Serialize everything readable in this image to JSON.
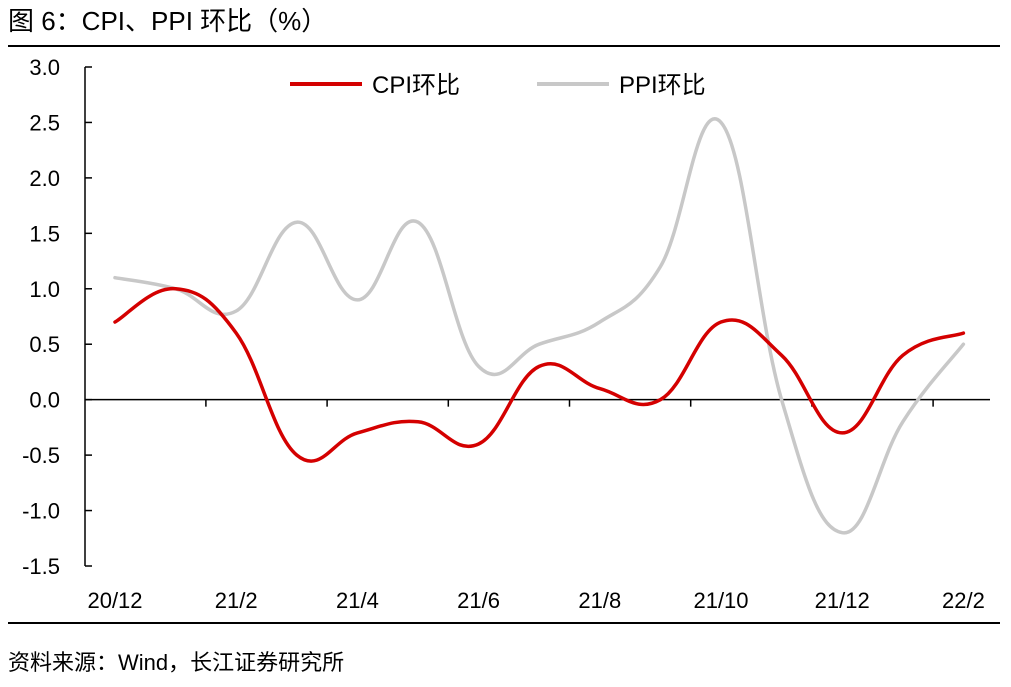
{
  "figure": {
    "title": "图 6：CPI、PPI 环比（%）",
    "source": "资料来源：Wind，长江证券研究所"
  },
  "chart_data": {
    "type": "line",
    "x_categories": [
      "20/12",
      "21/1",
      "21/2",
      "21/3",
      "21/4",
      "21/5",
      "21/6",
      "21/7",
      "21/8",
      "21/9",
      "21/10",
      "21/11",
      "21/12",
      "22/1",
      "22/2"
    ],
    "x_tick_labels": [
      "20/12",
      "21/2",
      "21/4",
      "21/6",
      "21/8",
      "21/10",
      "21/12",
      "22/2"
    ],
    "ylim": [
      -1.5,
      3.0
    ],
    "yticks": [
      "3.0",
      "2.5",
      "2.0",
      "1.5",
      "1.0",
      "0.5",
      "0.0",
      "-0.5",
      "-1.0",
      "-1.5"
    ],
    "legend_position": "top-center",
    "grid": false,
    "series": [
      {
        "name": "CPI环比",
        "color": "#d40000",
        "values": [
          0.7,
          1.0,
          0.6,
          -0.5,
          -0.3,
          -0.2,
          -0.4,
          0.3,
          0.1,
          0.0,
          0.7,
          0.4,
          -0.3,
          0.4,
          0.6
        ]
      },
      {
        "name": "PPI环比",
        "color": "#c8c8c8",
        "values": [
          1.1,
          1.0,
          0.8,
          1.6,
          0.9,
          1.6,
          0.3,
          0.5,
          0.7,
          1.2,
          2.5,
          0.0,
          -1.2,
          -0.2,
          0.5
        ]
      }
    ]
  }
}
